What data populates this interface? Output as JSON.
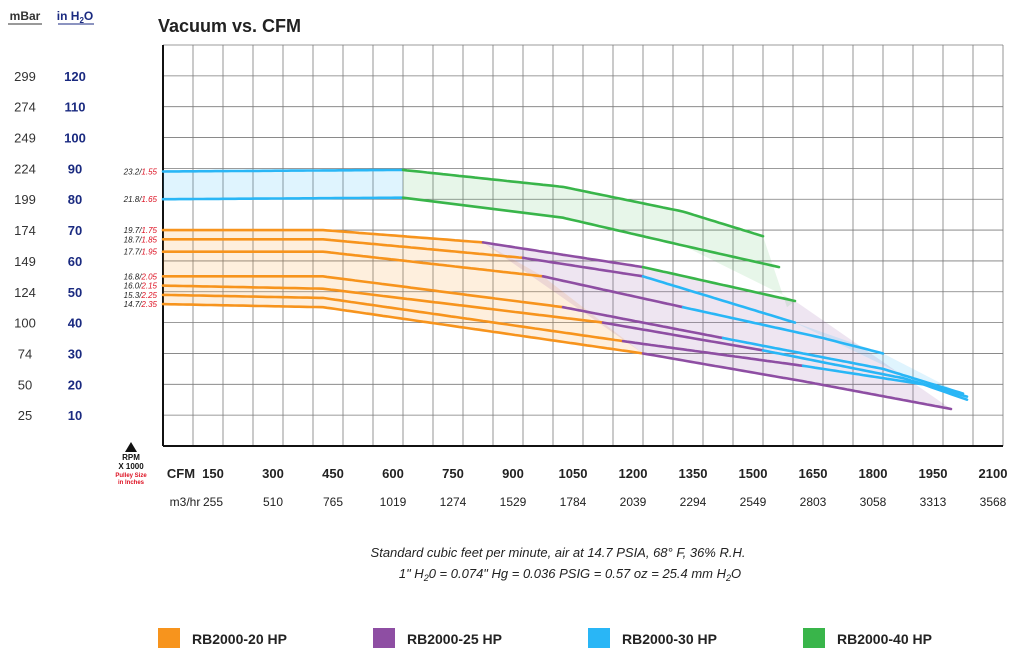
{
  "chart_data": {
    "type": "line",
    "title": "Vacuum vs. CFM",
    "xlabel": "CFM",
    "xlabel_secondary": "m3/hr",
    "ylabel_left_1": "mBar",
    "ylabel_left_2": "in H2O",
    "x_ticks_cfm": [
      "150",
      "300",
      "450",
      "600",
      "750",
      "900",
      "1050",
      "1200",
      "1350",
      "1500",
      "1650",
      "1800",
      "1950",
      "2100"
    ],
    "x_ticks_m3hr": [
      "255",
      "510",
      "765",
      "1019",
      "1274",
      "1529",
      "1784",
      "2039",
      "2294",
      "2549",
      "2803",
      "3058",
      "3313",
      "3568"
    ],
    "y_ticks_inh2o": [
      "120",
      "110",
      "100",
      "90",
      "80",
      "70",
      "60",
      "50",
      "40",
      "30",
      "20",
      "10"
    ],
    "y_ticks_mbar": [
      "299",
      "274",
      "249",
      "224",
      "199",
      "174",
      "149",
      "124",
      "100",
      "74",
      "50",
      "25"
    ],
    "xlim": [
      0,
      2100
    ],
    "ylim": [
      0,
      130
    ],
    "rpm_label": "RPM X 1000",
    "pulley_label": "Pulley Size in Inches",
    "curve_labels": [
      {
        "rpm": "23.2",
        "pulley": "1.55"
      },
      {
        "rpm": "21.8",
        "pulley": "1.65"
      },
      {
        "rpm": "19.7",
        "pulley": "1.75"
      },
      {
        "rpm": "18.7",
        "pulley": "1.85"
      },
      {
        "rpm": "17.7",
        "pulley": "1.95"
      },
      {
        "rpm": "16.8",
        "pulley": "2.05"
      },
      {
        "rpm": "16.0",
        "pulley": "2.15"
      },
      {
        "rpm": "15.3",
        "pulley": "2.25"
      },
      {
        "rpm": "14.7",
        "pulley": "2.35"
      }
    ],
    "series_colors": {
      "20": "#f7941d",
      "25": "#8e4ea3",
      "30": "#29b6f6",
      "40": "#39b54a"
    },
    "curves": [
      {
        "label": "23.2/1.55",
        "points": [
          [
            0,
            89
          ],
          [
            600,
            89.5
          ],
          [
            1000,
            84
          ],
          [
            1300,
            76
          ],
          [
            1500,
            68
          ]
        ],
        "segments": [
          {
            "series": "30",
            "to": 600
          },
          {
            "series": "40",
            "to": 1500
          }
        ]
      },
      {
        "label": "21.8/1.65",
        "points": [
          [
            0,
            80
          ],
          [
            600,
            80.5
          ],
          [
            1000,
            74
          ],
          [
            1300,
            65
          ],
          [
            1540,
            58
          ]
        ],
        "segments": [
          {
            "series": "30",
            "to": 600
          },
          {
            "series": "40",
            "to": 1540
          }
        ]
      },
      {
        "label": "19.7/1.75",
        "points": [
          [
            0,
            70
          ],
          [
            400,
            70
          ],
          [
            800,
            66
          ],
          [
            1200,
            58
          ],
          [
            1580,
            47
          ]
        ],
        "segments": [
          {
            "series": "20",
            "to": 800
          },
          {
            "series": "25",
            "to": 1200
          },
          {
            "series": "40",
            "to": 1580
          }
        ]
      },
      {
        "label": "18.7/1.85",
        "points": [
          [
            0,
            67
          ],
          [
            400,
            67
          ],
          [
            900,
            61
          ],
          [
            1200,
            55
          ],
          [
            1580,
            40
          ]
        ],
        "segments": [
          {
            "series": "20",
            "to": 900
          },
          {
            "series": "25",
            "to": 1200
          },
          {
            "series": "30",
            "to": 1580
          }
        ]
      },
      {
        "label": "17.7/1.95",
        "points": [
          [
            0,
            63
          ],
          [
            400,
            63
          ],
          [
            950,
            55
          ],
          [
            1300,
            45
          ],
          [
            1650,
            35
          ],
          [
            1800,
            30
          ]
        ],
        "segments": [
          {
            "series": "20",
            "to": 950
          },
          {
            "series": "25",
            "to": 1300
          },
          {
            "series": "30",
            "to": 1800
          }
        ]
      },
      {
        "label": "16.8/2.05",
        "points": [
          [
            0,
            55
          ],
          [
            400,
            55
          ],
          [
            1000,
            45
          ],
          [
            1400,
            35
          ],
          [
            1800,
            25
          ],
          [
            2000,
            17
          ]
        ],
        "segments": [
          {
            "series": "20",
            "to": 1000
          },
          {
            "series": "25",
            "to": 1400
          },
          {
            "series": "30",
            "to": 2000
          }
        ]
      },
      {
        "label": "16.0/2.15",
        "points": [
          [
            0,
            52
          ],
          [
            400,
            51
          ],
          [
            1100,
            40
          ],
          [
            1500,
            31
          ],
          [
            1850,
            22
          ],
          [
            2010,
            16
          ]
        ],
        "segments": [
          {
            "series": "20",
            "to": 1100
          },
          {
            "series": "25",
            "to": 1500
          },
          {
            "series": "30",
            "to": 2010
          }
        ]
      },
      {
        "label": "15.3/2.25",
        "points": [
          [
            0,
            49
          ],
          [
            400,
            48
          ],
          [
            1150,
            34
          ],
          [
            1600,
            26
          ],
          [
            1900,
            20
          ],
          [
            2010,
            15
          ]
        ],
        "segments": [
          {
            "series": "20",
            "to": 1150
          },
          {
            "series": "25",
            "to": 1600
          },
          {
            "series": "30",
            "to": 2010
          }
        ]
      },
      {
        "label": "14.7/2.35",
        "points": [
          [
            0,
            46
          ],
          [
            400,
            45
          ],
          [
            1200,
            30
          ],
          [
            1600,
            21
          ],
          [
            1970,
            12
          ]
        ],
        "segments": [
          {
            "series": "20",
            "to": 1200
          },
          {
            "series": "25",
            "to": 1970
          }
        ]
      }
    ],
    "shaded_regions": [
      {
        "series": "30",
        "polygon": [
          [
            0,
            89
          ],
          [
            600,
            89.5
          ],
          [
            600,
            80.5
          ],
          [
            0,
            80
          ]
        ]
      },
      {
        "series": "40",
        "polygon": [
          [
            600,
            89.5
          ],
          [
            1000,
            84
          ],
          [
            1300,
            76
          ],
          [
            1500,
            68
          ],
          [
            1560,
            45
          ],
          [
            1580,
            47
          ],
          [
            1300,
            65
          ],
          [
            1000,
            74
          ],
          [
            600,
            80.5
          ]
        ]
      },
      {
        "series": "20",
        "polygon": [
          [
            0,
            70
          ],
          [
            400,
            70
          ],
          [
            800,
            66
          ],
          [
            950,
            55
          ],
          [
            1200,
            30
          ],
          [
            400,
            45
          ],
          [
            0,
            46
          ]
        ]
      },
      {
        "series": "25",
        "polygon": [
          [
            800,
            66
          ],
          [
            1200,
            58
          ],
          [
            1580,
            47
          ],
          [
            1970,
            12
          ],
          [
            1600,
            21
          ],
          [
            1200,
            30
          ]
        ]
      },
      {
        "series": "30",
        "polygon": [
          [
            1200,
            55
          ],
          [
            1580,
            40
          ],
          [
            1800,
            30
          ],
          [
            2010,
            16
          ],
          [
            2010,
            15
          ],
          [
            1900,
            20
          ],
          [
            1580,
            40
          ]
        ]
      }
    ],
    "footnote_1": "Standard cubic feet per minute, air at 14.7 PSIA, 68° F, 36% R.H.",
    "footnote_2": "1\" H2O = 0.074\" Hg = 0.036 PSIG = 0.57 oz = 25.4 mm H2O",
    "legend_position": "bottom",
    "series": [
      {
        "name": "RB2000-20 HP",
        "color": "#f7941d"
      },
      {
        "name": "RB2000-25 HP",
        "color": "#8e4ea3"
      },
      {
        "name": "RB2000-30 HP",
        "color": "#29b6f6"
      },
      {
        "name": "RB2000-40 HP",
        "color": "#39b54a"
      }
    ]
  }
}
